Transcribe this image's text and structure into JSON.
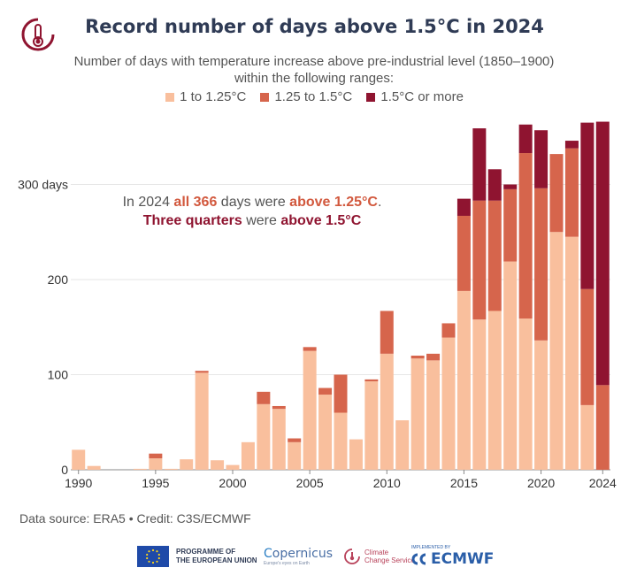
{
  "header": {
    "title": "Record number of days above 1.5°C in 2024",
    "subtitle": "Number of days with temperature increase above pre-industrial level (1850–1900) within the following ranges:"
  },
  "legend": [
    {
      "label": "1 to 1.25°C",
      "color": "#f9bf9d"
    },
    {
      "label": "1.25 to 1.5°C",
      "color": "#d6654c"
    },
    {
      "label": "1.5°C or more",
      "color": "#8f1430"
    }
  ],
  "annotation": {
    "t1": "In 2024 ",
    "t2": "all 366",
    "t3": " days were ",
    "t4": "above 1.25°C",
    "t5": ".",
    "t6": "Three quarters",
    "t7": " were ",
    "t8": "above 1.5°C"
  },
  "footer": {
    "source": "Data source: ERA5 • Credit: C3S/ECMWF",
    "eu_text_1": "PROGRAMME OF",
    "eu_text_2": "THE EUROPEAN UNION",
    "copernicus": "opernicus",
    "copernicus_c": "C",
    "copernicus_tag": "Europe's eyes on Earth",
    "ccs_1": "Climate",
    "ccs_2": "Change Service",
    "ecmwf_top": "IMPLEMENTED BY",
    "ecmwf": "ECMWF"
  },
  "chart_data": {
    "type": "bar",
    "stacked": true,
    "categories": [
      1990,
      1991,
      1992,
      1993,
      1994,
      1995,
      1996,
      1997,
      1998,
      1999,
      2000,
      2001,
      2002,
      2003,
      2004,
      2005,
      2006,
      2007,
      2008,
      2009,
      2010,
      2011,
      2012,
      2013,
      2014,
      2015,
      2016,
      2017,
      2018,
      2019,
      2020,
      2021,
      2022,
      2023,
      2024
    ],
    "series": [
      {
        "name": "1 to 1.25°C",
        "color": "#f9bf9d",
        "values": [
          21,
          4,
          0,
          0,
          1,
          12,
          1,
          11,
          102,
          10,
          5,
          29,
          69,
          64,
          29,
          125,
          79,
          60,
          32,
          93,
          122,
          52,
          117,
          115,
          139,
          188,
          158,
          167,
          219,
          159,
          136,
          250,
          245,
          68,
          0
        ]
      },
      {
        "name": "1.25 to 1.5°C",
        "color": "#d6654c",
        "values": [
          0,
          0,
          0,
          0,
          0,
          5,
          0,
          0,
          2,
          0,
          0,
          0,
          13,
          3,
          4,
          4,
          7,
          40,
          0,
          2,
          45,
          0,
          3,
          7,
          15,
          79,
          125,
          116,
          76,
          174,
          160,
          82,
          93,
          122,
          89
        ]
      },
      {
        "name": "1.5°C or more",
        "color": "#8f1430",
        "values": [
          0,
          0,
          0,
          0,
          0,
          0,
          0,
          0,
          0,
          0,
          0,
          0,
          0,
          0,
          0,
          0,
          0,
          0,
          0,
          0,
          0,
          0,
          0,
          0,
          0,
          18,
          76,
          33,
          5,
          30,
          61,
          0,
          8,
          175,
          277
        ]
      }
    ],
    "x_tick_labels": [
      "1990",
      "1995",
      "2000",
      "2005",
      "2010",
      "2015",
      "2020",
      "2024"
    ],
    "y_tick_labels": [
      "0",
      "100",
      "200",
      "300 days"
    ],
    "y_ticks": [
      0,
      100,
      200,
      300
    ],
    "ylim": [
      0,
      366
    ],
    "grid": true
  }
}
